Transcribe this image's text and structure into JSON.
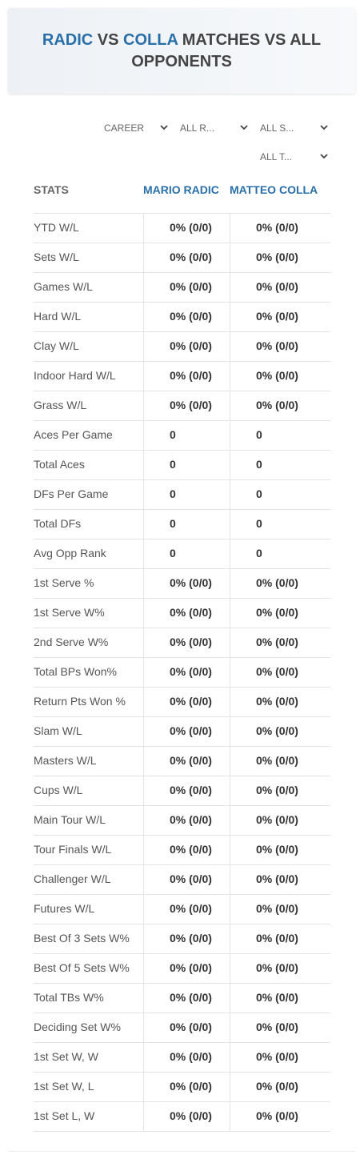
{
  "header": {
    "name1": "RADIC",
    "vs": "VS",
    "name2": "COLLA",
    "rest": "MATCHES VS ALL OPPONENTS"
  },
  "filters": [
    "CAREER",
    "ALL R...",
    "ALL S...",
    "ALL T..."
  ],
  "table": {
    "columns": [
      "STATS",
      "MARIO RADIC",
      "MATTEO COLLA"
    ],
    "rows": [
      [
        "YTD W/L",
        "0% (0/0)",
        "0% (0/0)"
      ],
      [
        "Sets W/L",
        "0% (0/0)",
        "0% (0/0)"
      ],
      [
        "Games W/L",
        "0% (0/0)",
        "0% (0/0)"
      ],
      [
        "Hard W/L",
        "0% (0/0)",
        "0% (0/0)"
      ],
      [
        "Clay W/L",
        "0% (0/0)",
        "0% (0/0)"
      ],
      [
        "Indoor Hard W/L",
        "0% (0/0)",
        "0% (0/0)"
      ],
      [
        "Grass W/L",
        "0% (0/0)",
        "0% (0/0)"
      ],
      [
        "Aces Per Game",
        0,
        0
      ],
      [
        "Total Aces",
        0,
        0
      ],
      [
        "DFs Per Game",
        0,
        0
      ],
      [
        "Total DFs",
        0,
        0
      ],
      [
        "Avg Opp Rank",
        0,
        0
      ],
      [
        "1st Serve %",
        "0% (0/0)",
        "0% (0/0)"
      ],
      [
        "1st Serve W%",
        "0% (0/0)",
        "0% (0/0)"
      ],
      [
        "2nd Serve W%",
        "0% (0/0)",
        "0% (0/0)"
      ],
      [
        "Total BPs Won%",
        "0% (0/0)",
        "0% (0/0)"
      ],
      [
        "Return Pts Won %",
        "0% (0/0)",
        "0% (0/0)"
      ],
      [
        "Slam W/L",
        "0% (0/0)",
        "0% (0/0)"
      ],
      [
        "Masters W/L",
        "0% (0/0)",
        "0% (0/0)"
      ],
      [
        "Cups W/L",
        "0% (0/0)",
        "0% (0/0)"
      ],
      [
        "Main Tour W/L",
        "0% (0/0)",
        "0% (0/0)"
      ],
      [
        "Tour Finals W/L",
        "0% (0/0)",
        "0% (0/0)"
      ],
      [
        "Challenger W/L",
        "0% (0/0)",
        "0% (0/0)"
      ],
      [
        "Futures W/L",
        "0% (0/0)",
        "0% (0/0)"
      ],
      [
        "Best Of 3 Sets W%",
        "0% (0/0)",
        "0% (0/0)"
      ],
      [
        "Best Of 5 Sets W%",
        "0% (0/0)",
        "0% (0/0)"
      ],
      [
        "Total TBs W%",
        "0% (0/0)",
        "0% (0/0)"
      ],
      [
        "Deciding Set W%",
        "0% (0/0)",
        "0% (0/0)"
      ],
      [
        "1st Set W, W",
        "0% (0/0)",
        "0% (0/0)"
      ],
      [
        "1st Set W, L",
        "0% (0/0)",
        "0% (0/0)"
      ],
      [
        "1st Set L, W",
        "0% (0/0)",
        "0% (0/0)"
      ]
    ]
  }
}
